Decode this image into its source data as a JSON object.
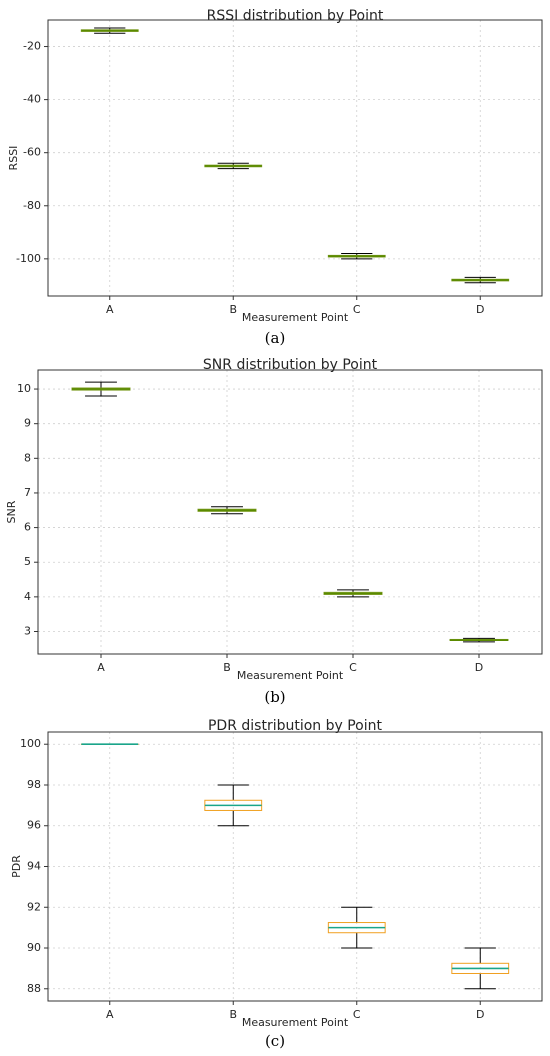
{
  "chart_data": [
    {
      "type": "box",
      "title": "RSSI distribution by Point",
      "xlabel": "Measurement Point",
      "ylabel": "RSSI",
      "categories": [
        "A",
        "B",
        "C",
        "D"
      ],
      "ylim": [
        -114,
        -10
      ],
      "yticks": [
        -100,
        -80,
        -60,
        -40,
        -20
      ],
      "grid": true,
      "boxes": [
        {
          "min": -15,
          "q1": -14.3,
          "median": -14,
          "q3": -13.7,
          "max": -13
        },
        {
          "min": -66,
          "q1": -65.3,
          "median": -65,
          "q3": -64.7,
          "max": -64
        },
        {
          "min": -100,
          "q1": -99.3,
          "median": -99,
          "q3": -98.7,
          "max": -98
        },
        {
          "min": -109,
          "q1": -108.3,
          "median": -108,
          "q3": -107.7,
          "max": -107
        }
      ],
      "colors": {
        "box": "#7a9a1e",
        "median": "#5a8a00",
        "whisker": "#000000"
      },
      "caption": "(a)"
    },
    {
      "type": "box",
      "title": "SNR distribution by Point",
      "xlabel": "Measurement Point",
      "ylabel": "SNR",
      "categories": [
        "A",
        "B",
        "C",
        "D"
      ],
      "ylim": [
        2.35,
        10.55
      ],
      "yticks": [
        3,
        4,
        5,
        6,
        7,
        8,
        9,
        10
      ],
      "grid": true,
      "boxes": [
        {
          "min": 9.8,
          "q1": 9.97,
          "median": 10.0,
          "q3": 10.03,
          "max": 10.2
        },
        {
          "min": 6.4,
          "q1": 6.47,
          "median": 6.5,
          "q3": 6.53,
          "max": 6.6
        },
        {
          "min": 4.0,
          "q1": 4.07,
          "median": 4.1,
          "q3": 4.13,
          "max": 4.2
        },
        {
          "min": 2.7,
          "q1": 2.74,
          "median": 2.75,
          "q3": 2.77,
          "max": 2.8
        }
      ],
      "colors": {
        "box": "#7a9a1e",
        "median": "#5a8a00",
        "whisker": "#000000"
      },
      "caption": "(b)"
    },
    {
      "type": "box",
      "title": "PDR distribution by Point",
      "xlabel": "Measurement Point",
      "ylabel": "PDR",
      "categories": [
        "A",
        "B",
        "C",
        "D"
      ],
      "ylim": [
        87.4,
        100.6
      ],
      "yticks": [
        88,
        90,
        92,
        94,
        96,
        98,
        100
      ],
      "grid": true,
      "boxes": [
        {
          "min": 100,
          "q1": 100,
          "median": 100,
          "q3": 100,
          "max": 100
        },
        {
          "min": 96,
          "q1": 96.75,
          "median": 97,
          "q3": 97.25,
          "max": 98
        },
        {
          "min": 90,
          "q1": 90.75,
          "median": 91,
          "q3": 91.25,
          "max": 92
        },
        {
          "min": 88,
          "q1": 88.75,
          "median": 89,
          "q3": 89.25,
          "max": 90
        }
      ],
      "colors": {
        "box": "#f0a020",
        "median": "#1aa58a",
        "whisker": "#000000"
      },
      "caption": "(c)"
    }
  ]
}
